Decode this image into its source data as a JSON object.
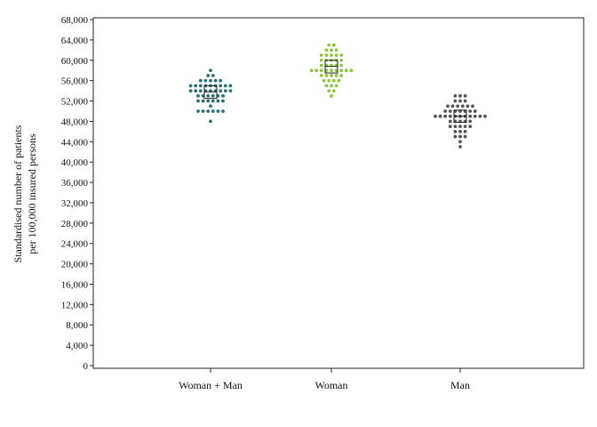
{
  "chart_data": {
    "type": "scatter",
    "subtype": "dot-strip with median box",
    "ylabel_lines": [
      "Standardised number of patients",
      "per 100,000 insured persons"
    ],
    "ylim": [
      0,
      68000
    ],
    "yticks": [
      0,
      4000,
      8000,
      12000,
      16000,
      20000,
      24000,
      28000,
      32000,
      36000,
      40000,
      44000,
      48000,
      52000,
      56000,
      60000,
      64000,
      68000
    ],
    "ytick_labels": [
      "0",
      "4,000",
      "8,000",
      "12,000",
      "16,000",
      "20,000",
      "24,000",
      "28,000",
      "32,000",
      "36,000",
      "40,000",
      "44,000",
      "48,000",
      "52,000",
      "56,000",
      "60,000",
      "64,000",
      "68,000"
    ],
    "categories": [
      "Woman + Man",
      "Woman",
      "Man"
    ],
    "grid": false,
    "series": [
      {
        "category": "Woman + Man",
        "color": "#2a6f78",
        "box": {
          "q1": 52500,
          "median": 53800,
          "q3": 55000
        },
        "values": [
          48000,
          50000,
          50000,
          50000,
          50000,
          50000,
          50000,
          51000,
          52000,
          52000,
          52000,
          52000,
          52000,
          52000,
          53000,
          53000,
          53000,
          53000,
          53000,
          53000,
          54000,
          54000,
          54000,
          54000,
          54000,
          54000,
          54000,
          54000,
          54000,
          55000,
          55000,
          55000,
          55000,
          55000,
          55000,
          55000,
          55000,
          55000,
          56000,
          56000,
          56000,
          56000,
          56000,
          57000,
          57000,
          58000
        ]
      },
      {
        "category": "Woman",
        "color": "#8cc63f",
        "box": {
          "q1": 57500,
          "median": 58800,
          "q3": 60000
        },
        "values": [
          53000,
          54000,
          54000,
          55000,
          55000,
          55000,
          56000,
          56000,
          56000,
          56000,
          57000,
          57000,
          57000,
          57000,
          57000,
          58000,
          58000,
          58000,
          58000,
          58000,
          58000,
          58000,
          58000,
          58000,
          59000,
          59000,
          59000,
          59000,
          59000,
          60000,
          60000,
          60000,
          60000,
          60000,
          61000,
          61000,
          61000,
          61000,
          61000,
          62000,
          62000,
          62000,
          63000,
          63000
        ]
      },
      {
        "category": "Man",
        "color": "#555555",
        "box": {
          "q1": 47800,
          "median": 49000,
          "q3": 50200
        },
        "values": [
          43000,
          44000,
          45000,
          45000,
          45000,
          46000,
          46000,
          46000,
          47000,
          47000,
          47000,
          47000,
          47000,
          48000,
          48000,
          48000,
          48000,
          48000,
          49000,
          49000,
          49000,
          49000,
          49000,
          49000,
          49000,
          49000,
          49000,
          49000,
          49000,
          50000,
          50000,
          50000,
          50000,
          50000,
          50000,
          50000,
          51000,
          51000,
          51000,
          51000,
          51000,
          51000,
          52000,
          52000,
          52000,
          53000,
          53000,
          53000
        ]
      }
    ]
  }
}
